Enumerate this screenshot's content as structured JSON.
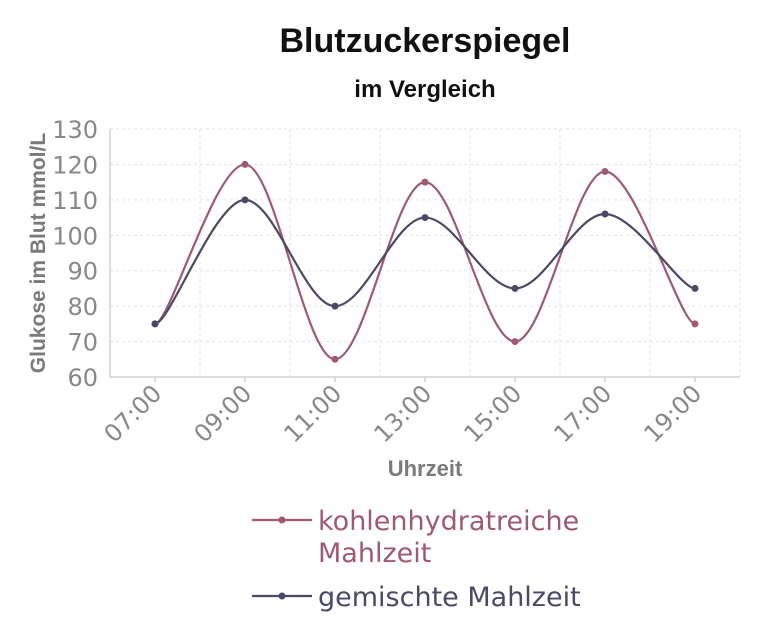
{
  "chart_data": {
    "type": "line",
    "title": "Blutzuckerspiegel",
    "subtitle": "im Vergleich",
    "xlabel": "Uhrzeit",
    "ylabel": "Glukose im Blut mmol/L",
    "categories": [
      "07:00",
      "09:00",
      "11:00",
      "13:00",
      "15:00",
      "17:00",
      "19:00"
    ],
    "ylim": [
      60,
      130
    ],
    "yticks": [
      60,
      70,
      80,
      90,
      100,
      110,
      120,
      130
    ],
    "grid": true,
    "legend_position": "bottom",
    "series": [
      {
        "name": "kohlenhydratreiche Mahlzeit",
        "legend_lines": [
          "kohlenhydratreiche",
          "Mahlzeit"
        ],
        "color": "#9e5a73",
        "values": [
          75,
          120,
          65,
          115,
          70,
          118,
          75
        ]
      },
      {
        "name": "gemischte Mahlzeit",
        "legend_lines": [
          "gemischte Mahlzeit"
        ],
        "color": "#4a4a66",
        "values": [
          75,
          110,
          80,
          105,
          85,
          106,
          85
        ]
      }
    ]
  }
}
